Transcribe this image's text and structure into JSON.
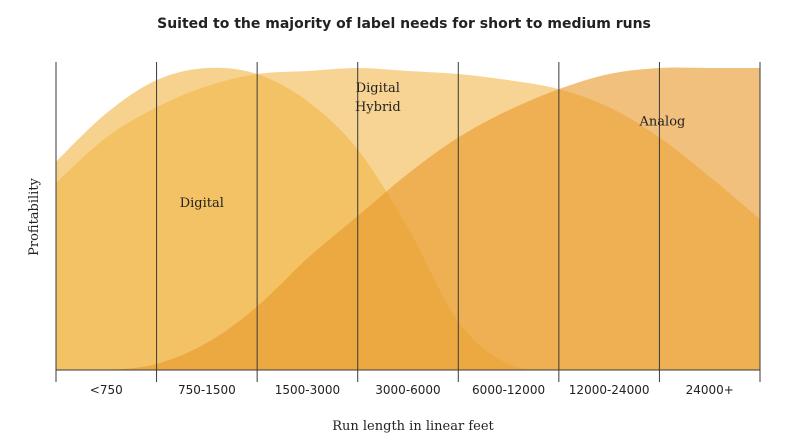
{
  "chart_data": {
    "type": "area",
    "title": "Suited to the majority of label needs for short to medium runs",
    "xlabel": "Run length in linear feet",
    "ylabel": "Profitability",
    "categories": [
      "<750",
      "750-1500",
      "1500-3000",
      "3000-6000",
      "6000-12000",
      "12000-24000",
      "24000+"
    ],
    "ylim": [
      0,
      100
    ],
    "grid": "vertical",
    "series": [
      {
        "name": "Digital",
        "color": "#f1b648",
        "label_lines": [
          "Digital"
        ],
        "x": [
          0,
          0.5,
          1,
          1.5,
          2,
          2.5,
          3,
          3.5,
          4,
          4.5,
          5,
          5.5,
          6,
          6.5,
          7
        ],
        "values": [
          69,
          85,
          96,
          100,
          98,
          89,
          73,
          47,
          16,
          2,
          0,
          0,
          0,
          0,
          0
        ]
      },
      {
        "name": "Digital Hybrid",
        "color": "#f6cd80",
        "label_lines": [
          "Digital",
          "Hybrid"
        ],
        "x": [
          0,
          0.5,
          1,
          1.5,
          2,
          2.5,
          3,
          3.5,
          4,
          4.5,
          5,
          5.5,
          6,
          6.5,
          7
        ],
        "values": [
          62,
          77,
          87,
          94,
          98,
          99,
          100,
          99,
          98,
          96,
          93,
          87,
          77,
          64,
          50
        ]
      },
      {
        "name": "Analog",
        "color": "#e99a2c",
        "label_lines": [
          "Analog"
        ],
        "x": [
          0,
          0.5,
          1,
          1.5,
          2,
          2.5,
          3,
          3.5,
          4,
          4.5,
          5,
          5.5,
          6,
          6.5,
          7
        ],
        "values": [
          0,
          0,
          2,
          9,
          21,
          37,
          51,
          65,
          77,
          86,
          93,
          98,
          100,
          100,
          100
        ]
      }
    ]
  }
}
